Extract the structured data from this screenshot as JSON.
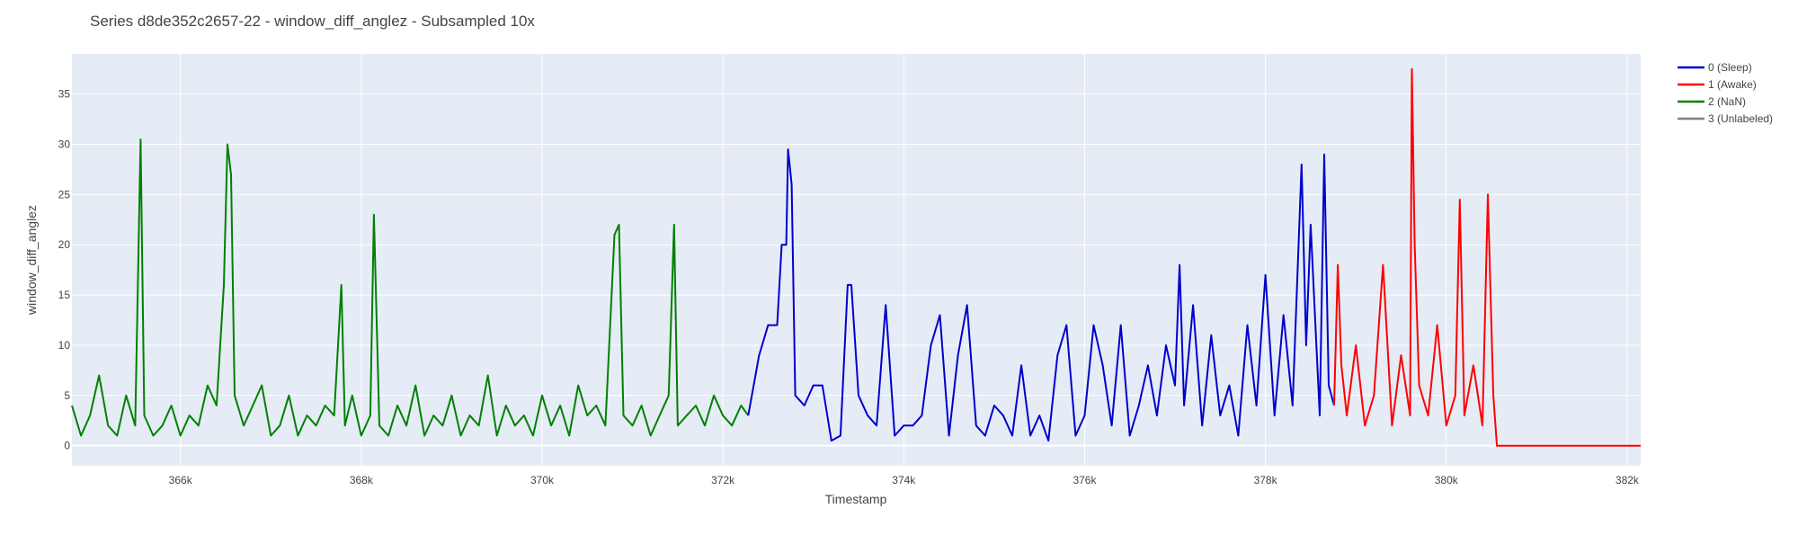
{
  "chart_data": {
    "type": "line",
    "title": "Series d8de352c2657-22 - window_diff_anglez - Subsampled 10x",
    "xlabel": "Timestamp",
    "ylabel": "window_diff_anglez",
    "xlim": [
      364800,
      382150
    ],
    "ylim": [
      -2,
      39
    ],
    "x_ticks": [
      {
        "value": 366000,
        "label": "366k"
      },
      {
        "value": 368000,
        "label": "368k"
      },
      {
        "value": 370000,
        "label": "370k"
      },
      {
        "value": 372000,
        "label": "372k"
      },
      {
        "value": 374000,
        "label": "374k"
      },
      {
        "value": 376000,
        "label": "376k"
      },
      {
        "value": 378000,
        "label": "378k"
      },
      {
        "value": 380000,
        "label": "380k"
      },
      {
        "value": 382000,
        "label": "382k"
      }
    ],
    "y_ticks": [
      {
        "value": 0,
        "label": "0"
      },
      {
        "value": 5,
        "label": "5"
      },
      {
        "value": 10,
        "label": "10"
      },
      {
        "value": 15,
        "label": "15"
      },
      {
        "value": 20,
        "label": "20"
      },
      {
        "value": 25,
        "label": "25"
      },
      {
        "value": 30,
        "label": "30"
      },
      {
        "value": 35,
        "label": "35"
      }
    ],
    "grid": true,
    "plot_background": "#e5ecf6",
    "legend_position": "top-right",
    "legend": [
      {
        "name": "0 (Sleep)",
        "color": "#0000cc"
      },
      {
        "name": "1 (Awake)",
        "color": "#ff0000"
      },
      {
        "name": "2 (NaN)",
        "color": "#008000"
      },
      {
        "name": "3 (Unlabeled)",
        "color": "#808080"
      }
    ],
    "series": [
      {
        "name": "2 (NaN)",
        "color": "#008000",
        "x": [
          364800,
          364900,
          365000,
          365100,
          365200,
          365300,
          365400,
          365500,
          365560,
          365600,
          365700,
          365800,
          365900,
          366000,
          366100,
          366200,
          366300,
          366400,
          366480,
          366520,
          366560,
          366600,
          366700,
          366800,
          366900,
          367000,
          367100,
          367200,
          367300,
          367400,
          367500,
          367600,
          367700,
          367780,
          367820,
          367900,
          368000,
          368100,
          368140,
          368200,
          368300,
          368400,
          368500,
          368600,
          368700,
          368800,
          368900,
          369000,
          369100,
          369200,
          369300,
          369400,
          369500,
          369600,
          369700,
          369800,
          369900,
          370000,
          370100,
          370200,
          370300,
          370400,
          370500,
          370600,
          370700,
          370800,
          370850,
          370900,
          371000,
          371100,
          371200,
          371300,
          371400,
          371460,
          371500,
          371600,
          371700,
          371800,
          371900,
          372000,
          372100,
          372200,
          372280
        ],
        "y": [
          4,
          1,
          3,
          7,
          2,
          1,
          5,
          2,
          30.5,
          3,
          1,
          2,
          4,
          1,
          3,
          2,
          6,
          4,
          16,
          30,
          27,
          5,
          2,
          4,
          6,
          1,
          2,
          5,
          1,
          3,
          2,
          4,
          3,
          16,
          2,
          5,
          1,
          3,
          23,
          2,
          1,
          4,
          2,
          6,
          1,
          3,
          2,
          5,
          1,
          3,
          2,
          7,
          1,
          4,
          2,
          3,
          1,
          5,
          2,
          4,
          1,
          6,
          3,
          4,
          2,
          21,
          22,
          3,
          2,
          4,
          1,
          3,
          5,
          22,
          2,
          3,
          4,
          2,
          5,
          3,
          2,
          4,
          3
        ]
      },
      {
        "name": "0 (Sleep)",
        "color": "#0000cc",
        "x": [
          372280,
          372400,
          372500,
          372600,
          372650,
          372700,
          372720,
          372760,
          372800,
          372900,
          373000,
          373100,
          373200,
          373300,
          373380,
          373420,
          373500,
          373600,
          373700,
          373800,
          373900,
          374000,
          374100,
          374200,
          374300,
          374400,
          374500,
          374600,
          374700,
          374800,
          374900,
          375000,
          375100,
          375200,
          375300,
          375400,
          375500,
          375600,
          375700,
          375800,
          375900,
          376000,
          376100,
          376200,
          376300,
          376400,
          376500,
          376600,
          376700,
          376800,
          376900,
          377000,
          377050,
          377100,
          377200,
          377300,
          377400,
          377500,
          377600,
          377700,
          377800,
          377900,
          378000,
          378100,
          378200,
          378300,
          378400,
          378450,
          378500,
          378600,
          378650,
          378700,
          378760
        ],
        "y": [
          3,
          9,
          12,
          12,
          20,
          20,
          29.5,
          26,
          5,
          4,
          6,
          6,
          0.5,
          1,
          16,
          16,
          5,
          3,
          2,
          14,
          1,
          2,
          2,
          3,
          10,
          13,
          1,
          9,
          14,
          2,
          1,
          4,
          3,
          1,
          8,
          1,
          3,
          0.5,
          9,
          12,
          1,
          3,
          12,
          8,
          2,
          12,
          1,
          4,
          8,
          3,
          10,
          6,
          18,
          4,
          14,
          2,
          11,
          3,
          6,
          1,
          12,
          4,
          17,
          3,
          13,
          4,
          28,
          10,
          22,
          3,
          29,
          6,
          4
        ]
      },
      {
        "name": "1 (Awake)",
        "color": "#ff0000",
        "x": [
          378760,
          378800,
          378840,
          378900,
          379000,
          379100,
          379200,
          379300,
          379400,
          379500,
          379600,
          379620,
          379650,
          379700,
          379800,
          379900,
          380000,
          380100,
          380150,
          380200,
          380300,
          380400,
          380460,
          380520,
          380560,
          382150
        ],
        "y": [
          4,
          18,
          8,
          3,
          10,
          2,
          5,
          18,
          2,
          9,
          3,
          37.5,
          20,
          6,
          3,
          12,
          2,
          5,
          24.5,
          3,
          8,
          2,
          25,
          5,
          0,
          0
        ]
      }
    ]
  }
}
